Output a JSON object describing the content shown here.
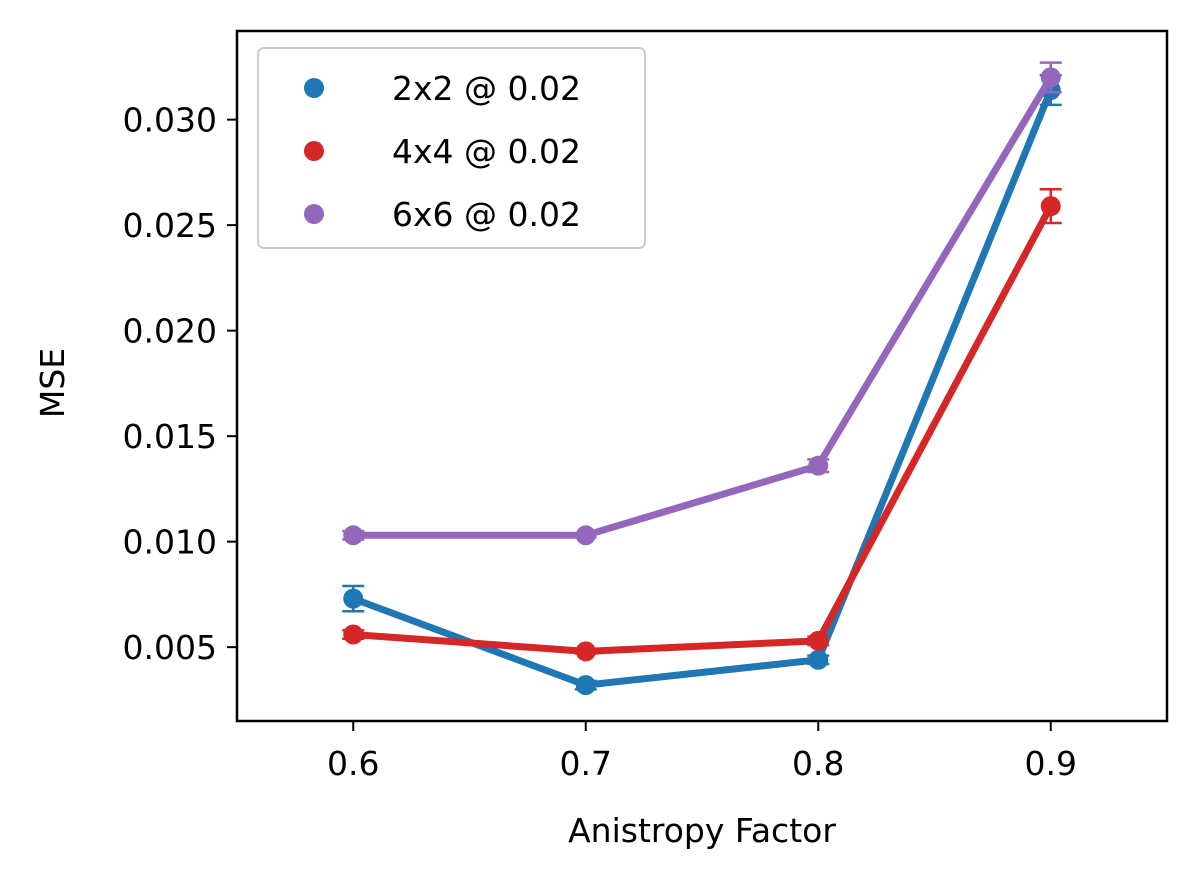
{
  "chart_data": {
    "type": "line",
    "xlabel": "Anistropy Factor",
    "ylabel": "MSE",
    "xlim": [
      0.55,
      0.95
    ],
    "ylim": [
      0.0015,
      0.0342
    ],
    "x_ticks": [
      "0.6",
      "0.7",
      "0.8",
      "0.9"
    ],
    "x_tick_values": [
      0.6,
      0.7,
      0.8,
      0.9
    ],
    "y_ticks": [
      "0.005",
      "0.010",
      "0.015",
      "0.020",
      "0.025",
      "0.030"
    ],
    "y_tick_values": [
      0.005,
      0.01,
      0.015,
      0.02,
      0.025,
      0.03
    ],
    "grid": false,
    "legend_position": "top-left",
    "x": [
      0.6,
      0.7,
      0.8,
      0.9
    ],
    "series": [
      {
        "name": "2x2 @ 0.02",
        "color": "#1f77b4",
        "values": [
          0.0073,
          0.0032,
          0.0044,
          0.0314
        ],
        "errors": [
          0.0006,
          0.0002,
          0.0002,
          0.0007
        ]
      },
      {
        "name": "4x4 @ 0.02",
        "color": "#d62728",
        "values": [
          0.0056,
          0.0048,
          0.0053,
          0.0259
        ],
        "errors": [
          0.0002,
          0.0001,
          0.0002,
          0.0008
        ]
      },
      {
        "name": "6x6 @ 0.02",
        "color": "#9467bd",
        "values": [
          0.0103,
          0.0103,
          0.0136,
          0.032
        ],
        "errors": [
          0.0002,
          0.0001,
          0.0003,
          0.0007
        ]
      }
    ]
  }
}
